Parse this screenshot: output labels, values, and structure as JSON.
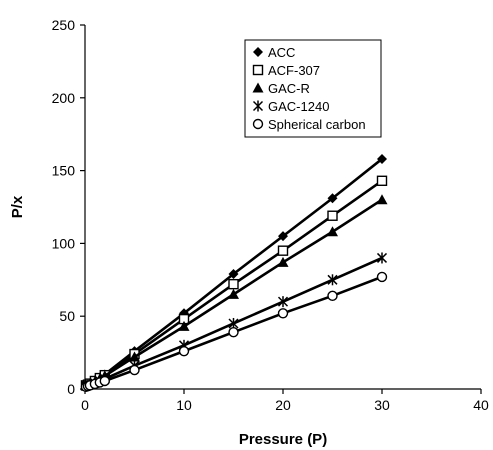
{
  "chart_data": {
    "type": "line",
    "title": "",
    "xlabel": "Pressure (P)",
    "ylabel": "P/x",
    "xlim": [
      0,
      40
    ],
    "ylim": [
      0,
      250
    ],
    "x_ticks": [
      0,
      10,
      20,
      30,
      40
    ],
    "y_ticks": [
      0,
      50,
      100,
      150,
      200,
      250
    ],
    "grid": false,
    "legend_position": "top-right",
    "series": [
      {
        "name": "ACC",
        "marker": "filled-diamond",
        "x": [
          0.1,
          0.3,
          0.5,
          1,
          1.5,
          2,
          5,
          10,
          15,
          20,
          25,
          30
        ],
        "y": [
          3,
          3.5,
          4,
          6,
          8,
          10,
          26,
          52,
          79,
          105,
          131,
          158
        ]
      },
      {
        "name": "ACF-307",
        "marker": "open-square",
        "x": [
          0.1,
          0.3,
          0.5,
          1,
          1.5,
          2,
          5,
          10,
          15,
          20,
          25,
          30
        ],
        "y": [
          2.5,
          3,
          3.7,
          5.5,
          7.5,
          9.5,
          24,
          48,
          72,
          95,
          119,
          143
        ]
      },
      {
        "name": "GAC-R",
        "marker": "filled-triangle",
        "x": [
          0.1,
          0.3,
          0.5,
          1,
          1.5,
          2,
          5,
          10,
          15,
          20,
          25,
          30
        ],
        "y": [
          2.5,
          3,
          3.5,
          5,
          7,
          9,
          22,
          43,
          65,
          87,
          108,
          130
        ]
      },
      {
        "name": "GAC-1240",
        "marker": "asterisk",
        "x": [
          0.1,
          0.3,
          0.5,
          1,
          1.5,
          2,
          5,
          10,
          15,
          20,
          25,
          30
        ],
        "y": [
          2,
          2.5,
          3,
          4,
          5.5,
          7,
          16,
          30,
          45,
          60,
          75,
          90
        ]
      },
      {
        "name": "Spherical carbon",
        "marker": "open-circle",
        "x": [
          0.1,
          0.3,
          0.5,
          1,
          1.5,
          2,
          5,
          10,
          15,
          20,
          25,
          30
        ],
        "y": [
          1.5,
          2,
          2.5,
          3.5,
          4.5,
          5.5,
          13,
          26,
          39,
          52,
          64,
          77
        ]
      }
    ]
  }
}
